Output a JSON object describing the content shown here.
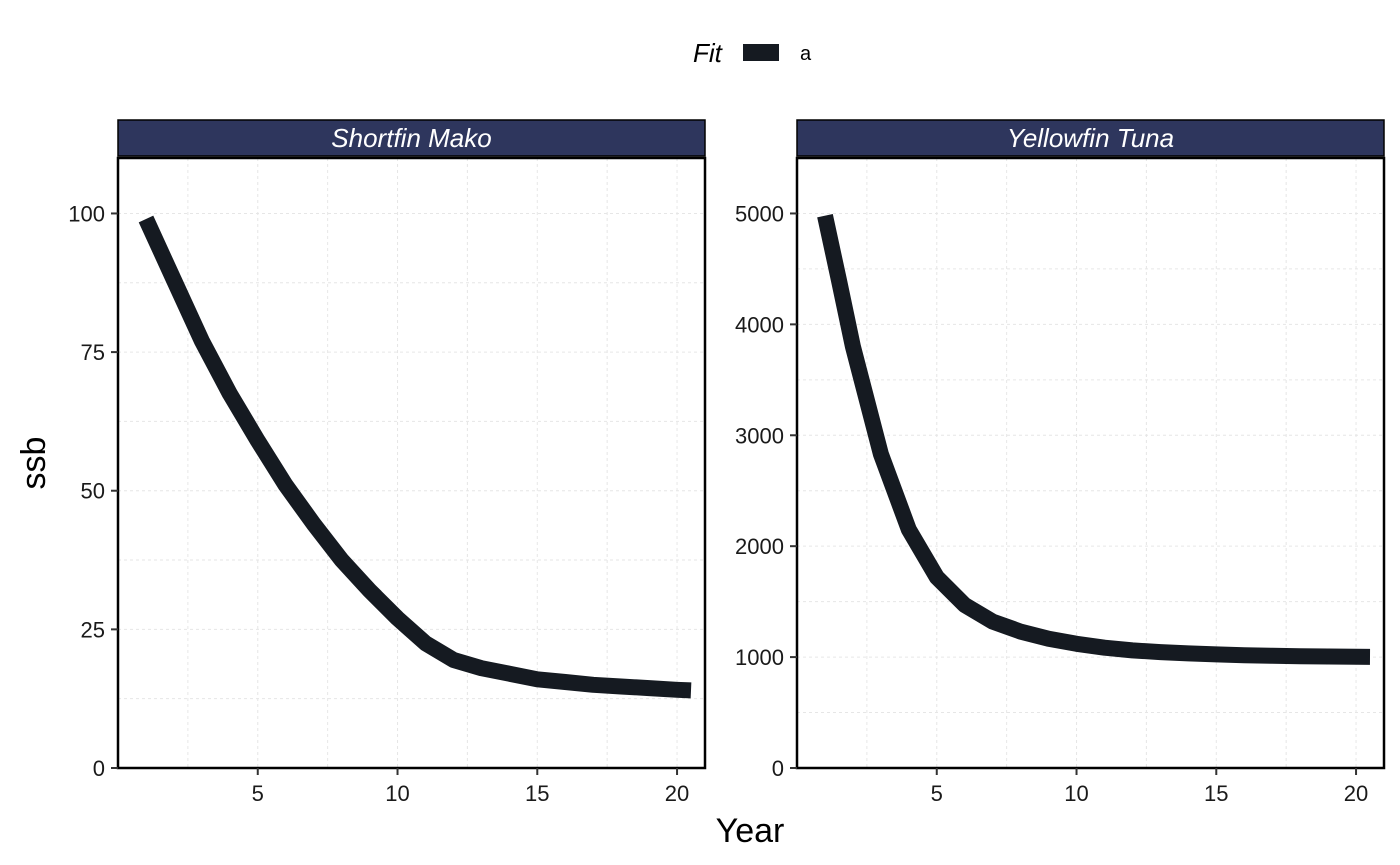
{
  "colors": {
    "line": "#151a21",
    "strip_fill": "#2e365d",
    "strip_text": "#ffffff",
    "panel_border": "#000000",
    "grid": "#e6e6e6"
  },
  "chart_data": {
    "type": "line",
    "title": "",
    "xlabel": "Year",
    "ylabel": "ssb",
    "legend": {
      "title": "Fit",
      "placement": "top",
      "entries": [
        {
          "label": "a",
          "color": "#151a21"
        }
      ]
    },
    "grid": true,
    "facets": [
      {
        "label": "Shortfin Mako",
        "xlim": [
          0,
          21
        ],
        "ylim": [
          0,
          110
        ],
        "xticks": [
          5,
          10,
          15,
          20
        ],
        "yticks": [
          0,
          25,
          50,
          75,
          100
        ],
        "series": [
          {
            "name": "a",
            "x": [
              1,
              2,
              3,
              4,
              5,
              6,
              7,
              8,
              9,
              10,
              11,
              12,
              13,
              14,
              15,
              16,
              17,
              18,
              19,
              20,
              20.5
            ],
            "y": [
              99,
              88,
              77,
              67.5,
              59,
              51,
              44,
              37.5,
              32,
              27,
              22.5,
              19.5,
              18,
              17,
              16,
              15.5,
              15,
              14.7,
              14.4,
              14.1,
              14
            ]
          }
        ]
      },
      {
        "label": "Yellowfin Tuna",
        "xlim": [
          0,
          21
        ],
        "ylim": [
          0,
          5500
        ],
        "xticks": [
          5,
          10,
          15,
          20
        ],
        "yticks": [
          0,
          1000,
          2000,
          3000,
          4000,
          5000
        ],
        "series": [
          {
            "name": "a",
            "x": [
              1,
              1.5,
              2,
              3,
              4,
              5,
              6,
              7,
              8,
              9,
              10,
              11,
              12,
              13,
              14,
              15,
              16,
              17,
              18,
              19,
              20,
              20.5
            ],
            "y": [
              4980,
              4400,
              3800,
              2830,
              2150,
              1720,
              1470,
              1320,
              1230,
              1165,
              1120,
              1085,
              1060,
              1045,
              1033,
              1024,
              1017,
              1012,
              1008,
              1005,
              1003,
              1002
            ]
          }
        ]
      }
    ]
  }
}
